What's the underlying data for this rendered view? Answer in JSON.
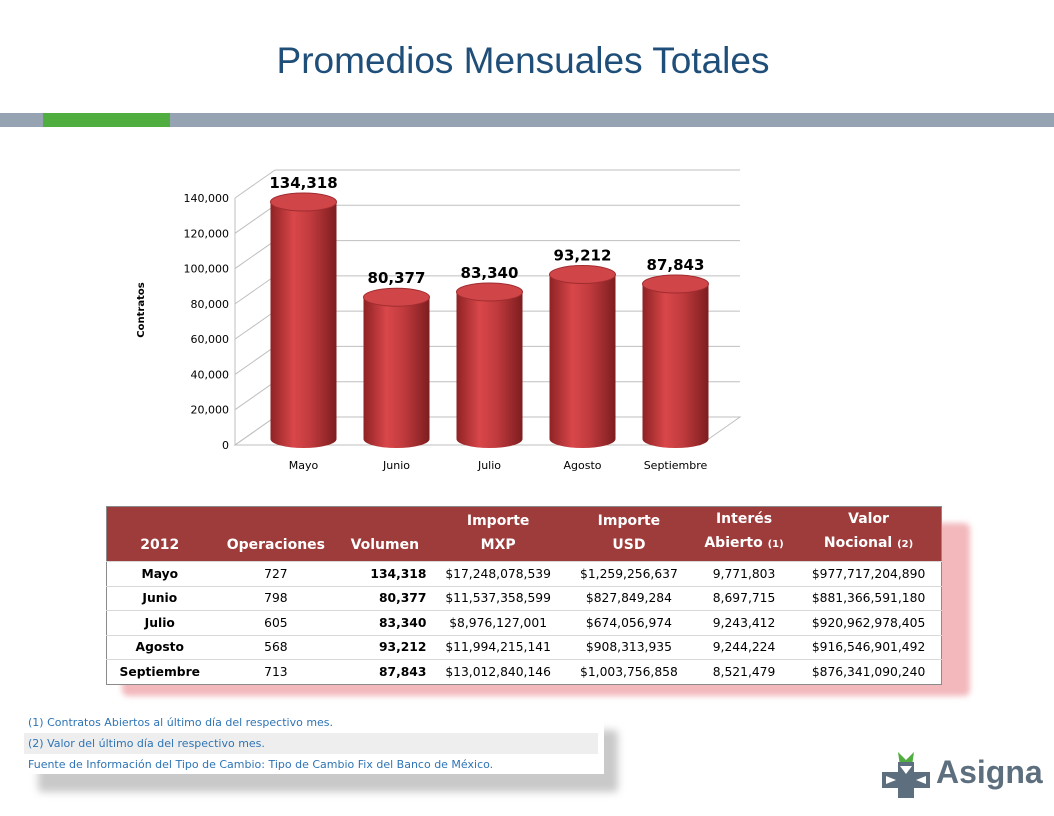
{
  "page": {
    "title": "Promedios Mensuales Totales",
    "colors": {
      "title": "#1f4e79",
      "band": "#95a3b3",
      "band_accent": "#4fae3f",
      "header": "#9e3b3b",
      "bar": "#c0393b"
    }
  },
  "chart_data": {
    "type": "bar",
    "categories": [
      "Mayo",
      "Junio",
      "Julio",
      "Agosto",
      "Septiembre"
    ],
    "values": [
      134318,
      80377,
      83340,
      93212,
      87843
    ],
    "data_labels": [
      "134,318",
      "80,377",
      "83,340",
      "93,212",
      "87,843"
    ],
    "ylabel": "Contratos",
    "ylim": [
      0,
      140000
    ],
    "yticks": [
      "0",
      "20,000",
      "40,000",
      "60,000",
      "80,000",
      "100,000",
      "120,000",
      "140,000"
    ],
    "grid": true,
    "style": "3d-cylinder"
  },
  "table": {
    "headers": [
      {
        "line1": "",
        "line2": "2012",
        "note": ""
      },
      {
        "line1": "",
        "line2": "Operaciones",
        "note": ""
      },
      {
        "line1": "",
        "line2": "Volumen",
        "note": ""
      },
      {
        "line1": "Importe",
        "line2": "MXP",
        "note": ""
      },
      {
        "line1": "Importe",
        "line2": "USD",
        "note": ""
      },
      {
        "line1": "Interés",
        "line2": "Abierto ",
        "note": "(1)"
      },
      {
        "line1": "Valor",
        "line2": "Nocional ",
        "note": "(2)"
      }
    ],
    "rows": [
      [
        "Mayo",
        "727",
        "134,318",
        "$17,248,078,539",
        "$1,259,256,637",
        "9,771,803",
        "$977,717,204,890"
      ],
      [
        "Junio",
        "798",
        "80,377",
        "$11,537,358,599",
        "$827,849,284",
        "8,697,715",
        "$881,366,591,180"
      ],
      [
        "Julio",
        "605",
        "83,340",
        "$8,976,127,001",
        "$674,056,974",
        "9,243,412",
        "$920,962,978,405"
      ],
      [
        "Agosto",
        "568",
        "93,212",
        "$11,994,215,141",
        "$908,313,935",
        "9,244,224",
        "$916,546,901,492"
      ],
      [
        "Septiembre",
        "713",
        "87,843",
        "$13,012,840,146",
        "$1,003,756,858",
        "8,521,479",
        "$876,341,090,240"
      ]
    ]
  },
  "notes": [
    "(1) Contratos Abiertos al último día del respectivo mes.",
    "(2) Valor del último día del respectivo mes.",
    "Fuente de Información del Tipo de Cambio: Tipo de Cambio Fix del Banco de México."
  ],
  "logo": {
    "text": "Asigna",
    "icon": "asigna-logo-icon"
  }
}
